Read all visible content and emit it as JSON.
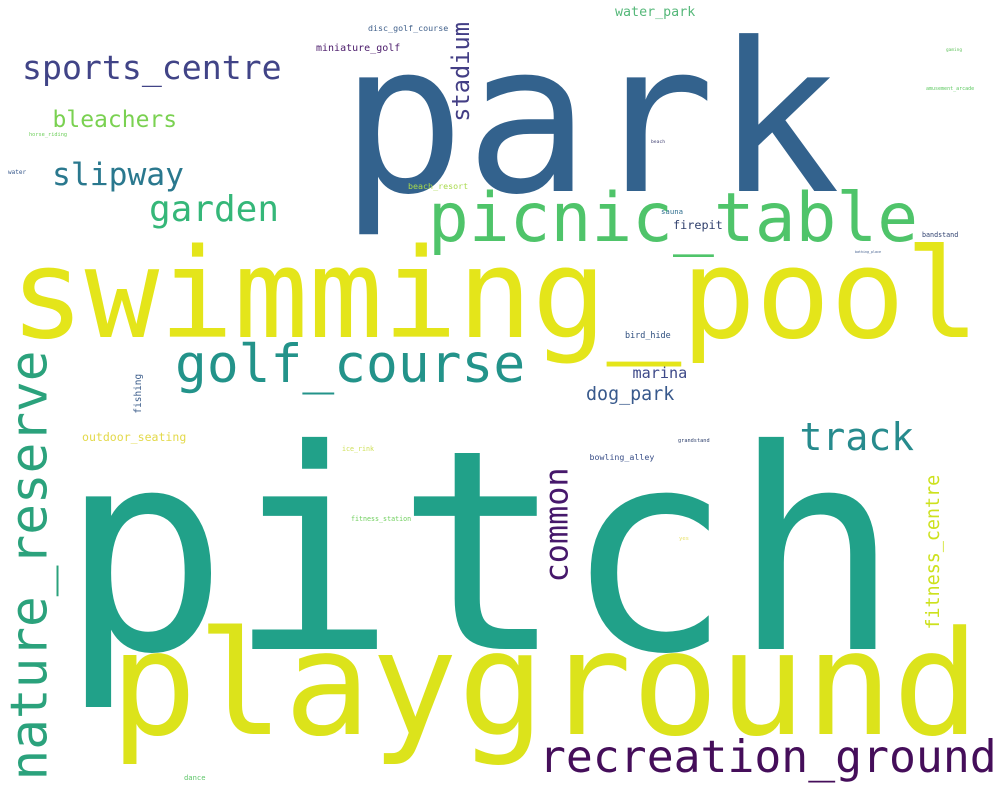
{
  "wordcloud": {
    "words": [
      {
        "text": "pitch",
        "color": "#21a189",
        "rotated": false
      },
      {
        "text": "swimming_pool",
        "color": "#e4e51a",
        "rotated": false
      },
      {
        "text": "park",
        "color": "#33628d",
        "rotated": false
      },
      {
        "text": "playground",
        "color": "#dce31b",
        "rotated": false
      },
      {
        "text": "nature_reserve",
        "color": "#2ba27c",
        "rotated": true
      },
      {
        "text": "picnic_table",
        "color": "#4fc46a",
        "rotated": false
      },
      {
        "text": "recreation_ground",
        "color": "#450e5a",
        "rotated": false
      },
      {
        "text": "golf_course",
        "color": "#23938a",
        "rotated": false
      },
      {
        "text": "common",
        "color": "#46186b",
        "rotated": true
      },
      {
        "text": "track",
        "color": "#278b8d",
        "rotated": false
      },
      {
        "text": "sports_centre",
        "color": "#414487",
        "rotated": false
      },
      {
        "text": "garden",
        "color": "#35b779",
        "rotated": false
      },
      {
        "text": "slipway",
        "color": "#2a788e",
        "rotated": false
      },
      {
        "text": "bleachers",
        "color": "#7ad151",
        "rotated": false
      },
      {
        "text": "stadium",
        "color": "#433e85",
        "rotated": true
      },
      {
        "text": "fitness_centre",
        "color": "#cde11d",
        "rotated": true
      },
      {
        "text": "dog_park",
        "color": "#38598c",
        "rotated": false
      },
      {
        "text": "marina",
        "color": "#3e4a89",
        "rotated": false
      },
      {
        "text": "firepit",
        "color": "#2e3e6b",
        "rotated": false
      },
      {
        "text": "water_park",
        "color": "#56b87a",
        "rotated": false
      },
      {
        "text": "outdoor_seating",
        "color": "#e3d94a",
        "rotated": false
      },
      {
        "text": "disc_golf_course",
        "color": "#3f5f8a",
        "rotated": false
      },
      {
        "text": "bird_hide",
        "color": "#2f4f7f",
        "rotated": false
      },
      {
        "text": "bowling_alley",
        "color": "#3a4f88",
        "rotated": false
      },
      {
        "text": "beach_resort",
        "color": "#a8d94b",
        "rotated": false
      },
      {
        "text": "fishing",
        "color": "#3b5c8a",
        "rotated": true
      },
      {
        "text": "miniature_golf",
        "color": "#4a1a6a",
        "rotated": false
      },
      {
        "text": "fitness_station",
        "color": "#6fcf5d",
        "rotated": false
      },
      {
        "text": "bandstand",
        "color": "#2d3f6e",
        "rotated": false
      },
      {
        "text": "ice_rink",
        "color": "#cfe05a",
        "rotated": false
      },
      {
        "text": "amusement_arcade",
        "color": "#5ec962",
        "rotated": false
      },
      {
        "text": "horse_riding",
        "color": "#6cce59",
        "rotated": false
      },
      {
        "text": "grandstand",
        "color": "#2c3e6b",
        "rotated": false
      },
      {
        "text": "dance",
        "color": "#5fc66a",
        "rotated": false
      },
      {
        "text": "sauna",
        "color": "#2f6e8e",
        "rotated": false
      },
      {
        "text": "beach",
        "color": "#3b3b6e",
        "rotated": false
      },
      {
        "text": "bathing_place",
        "color": "#3d5a8a",
        "rotated": false
      },
      {
        "text": "water",
        "color": "#38598c",
        "rotated": false
      },
      {
        "text": "gaming",
        "color": "#62c35e",
        "rotated": false
      },
      {
        "text": "yes",
        "color": "#e8e26a",
        "rotated": false
      }
    ]
  }
}
